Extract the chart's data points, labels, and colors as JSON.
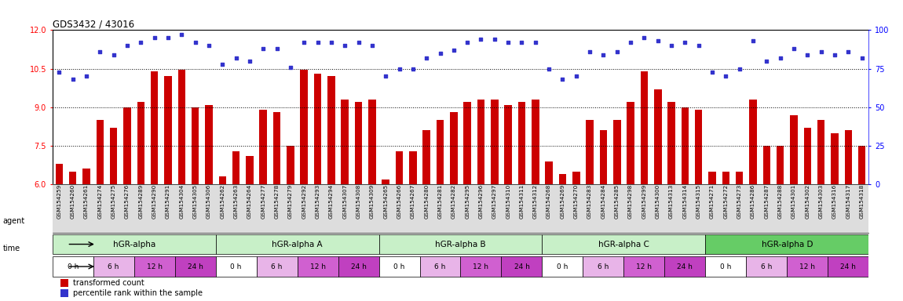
{
  "title": "GDS3432 / 43016",
  "ylim_left": [
    6,
    12
  ],
  "ylim_right": [
    0,
    100
  ],
  "yticks_left": [
    6,
    7.5,
    9,
    10.5,
    12
  ],
  "yticks_right": [
    0,
    25,
    50,
    75,
    100
  ],
  "hlines": [
    7.5,
    9,
    10.5
  ],
  "bar_color": "#cc0000",
  "dot_color": "#3333cc",
  "sample_labels": [
    "GSM154259",
    "GSM154260",
    "GSM154261",
    "GSM154274",
    "GSM154275",
    "GSM154276",
    "GSM154289",
    "GSM154290",
    "GSM154291",
    "GSM154304",
    "GSM154305",
    "GSM154306",
    "GSM154262",
    "GSM154263",
    "GSM154264",
    "GSM154277",
    "GSM154278",
    "GSM154279",
    "GSM154292",
    "GSM154293",
    "GSM154294",
    "GSM154307",
    "GSM154308",
    "GSM154309",
    "GSM154265",
    "GSM154266",
    "GSM154267",
    "GSM154280",
    "GSM154281",
    "GSM154282",
    "GSM154295",
    "GSM154296",
    "GSM154297",
    "GSM154310",
    "GSM154311",
    "GSM154312",
    "GSM154268",
    "GSM154269",
    "GSM154270",
    "GSM154283",
    "GSM154284",
    "GSM154285",
    "GSM154298",
    "GSM154299",
    "GSM154300",
    "GSM154313",
    "GSM154314",
    "GSM154315",
    "GSM154271",
    "GSM154272",
    "GSM154273",
    "GSM154286",
    "GSM154287",
    "GSM154288",
    "GSM154301",
    "GSM154302",
    "GSM154303",
    "GSM154316",
    "GSM154317",
    "GSM154318"
  ],
  "bar_values": [
    6.8,
    6.5,
    6.6,
    8.5,
    8.2,
    9.0,
    9.2,
    10.4,
    10.2,
    10.45,
    9.0,
    9.1,
    6.3,
    7.3,
    7.1,
    8.9,
    8.8,
    7.5,
    10.45,
    10.3,
    10.2,
    9.3,
    9.2,
    9.3,
    6.2,
    7.3,
    7.3,
    8.1,
    8.5,
    8.8,
    9.2,
    9.3,
    9.3,
    9.1,
    9.2,
    9.3,
    6.9,
    6.4,
    6.5,
    8.5,
    8.1,
    8.5,
    9.2,
    10.4,
    9.7,
    9.2,
    9.0,
    8.9,
    6.5,
    6.5,
    6.5,
    9.3,
    7.5,
    7.5,
    8.7,
    8.2,
    8.5,
    8.0,
    8.1,
    7.5
  ],
  "dot_values": [
    73,
    68,
    70,
    86,
    84,
    90,
    92,
    95,
    95,
    97,
    92,
    90,
    78,
    82,
    80,
    88,
    88,
    76,
    92,
    92,
    92,
    90,
    92,
    90,
    70,
    75,
    75,
    82,
    85,
    87,
    92,
    94,
    94,
    92,
    92,
    92,
    75,
    68,
    70,
    86,
    84,
    86,
    92,
    95,
    93,
    90,
    92,
    90,
    73,
    70,
    75,
    93,
    80,
    82,
    88,
    84,
    86,
    84,
    86,
    82
  ],
  "agents": [
    "hGR-alpha",
    "hGR-alpha A",
    "hGR-alpha B",
    "hGR-alpha C",
    "hGR-alpha D"
  ],
  "agent_colors": [
    "#c8f0c8",
    "#c8f0c8",
    "#c8f0c8",
    "#c8f0c8",
    "#66cc66"
  ],
  "time_labels": [
    "0 h",
    "6 h",
    "12 h",
    "24 h"
  ],
  "time_colors": [
    "#ffffff",
    "#e8b4e8",
    "#d060d0",
    "#c040c0"
  ],
  "legend_bar_color": "#cc0000",
  "legend_dot_color": "#3333cc",
  "legend_bar_label": "transformed count",
  "legend_dot_label": "percentile rank within the sample",
  "background_color": "#ffffff",
  "plot_bg_color": "#ffffff",
  "label_bg_color": "#dddddd",
  "group_size": 12,
  "sub_size": 3
}
